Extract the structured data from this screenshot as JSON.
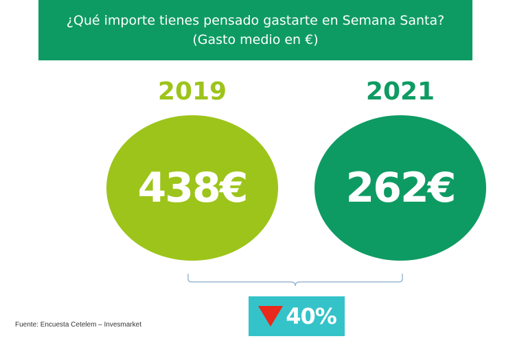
{
  "header": {
    "title_line1": "¿Qué importe tienes pensado gastarte en Semana Santa?",
    "title_line2": "(Gasto medio en €)"
  },
  "colors": {
    "banner": "#0e9b63",
    "year_2019": "#9dc41a",
    "year_2021": "#0e9b63",
    "change_box": "#34c3c9",
    "down_arrow": "#e8291c"
  },
  "chart_data": {
    "type": "bubble-comparison",
    "categories": [
      "2019",
      "2021"
    ],
    "values": [
      438,
      262
    ],
    "value_labels": [
      "438€",
      "262€"
    ],
    "unit": "€",
    "change": {
      "direction": "down",
      "label": "40%",
      "icon": "down-triangle-icon"
    }
  },
  "footer": {
    "source": "Fuente: Encuesta Cetelem – Invesmarket"
  }
}
